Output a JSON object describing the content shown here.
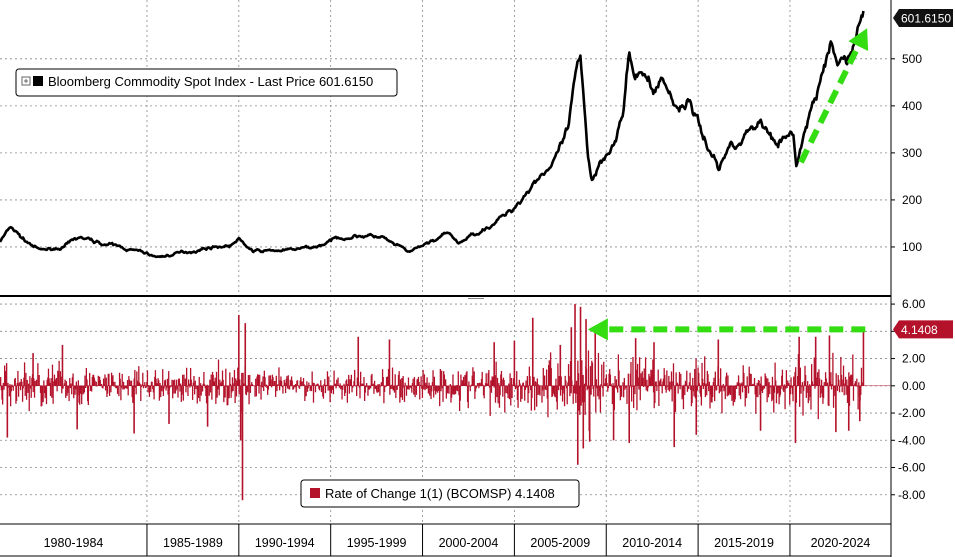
{
  "chart_data": [
    {
      "type": "line",
      "legend": {
        "label": "Bloomberg Commodity Spot Index - Last Price 601.6150",
        "placement": "top-left",
        "swatch_color": "#000000"
      },
      "series": [
        {
          "color": "#000000",
          "last_value_label": "601.6150",
          "anchors": [
            [
              1977.0,
              112
            ],
            [
              1977.6,
              142
            ],
            [
              1978.3,
              115
            ],
            [
              1979.2,
              92
            ],
            [
              1980.5,
              100
            ],
            [
              1981.3,
              120
            ],
            [
              1982.3,
              110
            ],
            [
              1983.5,
              100
            ],
            [
              1984.8,
              88
            ],
            [
              1985.6,
              78
            ],
            [
              1986.5,
              85
            ],
            [
              1987.5,
              92
            ],
            [
              1988.5,
              100
            ],
            [
              1989.5,
              103
            ],
            [
              1990.0,
              115
            ],
            [
              1990.8,
              90
            ],
            [
              1991.8,
              92
            ],
            [
              1992.8,
              93
            ],
            [
              1994.2,
              100
            ],
            [
              1995.5,
              120
            ],
            [
              1996.8,
              125
            ],
            [
              1997.8,
              120
            ],
            [
              1998.4,
              105
            ],
            [
              1999.3,
              88
            ],
            [
              2000.3,
              108
            ],
            [
              2001.3,
              128
            ],
            [
              2002.0,
              108
            ],
            [
              2002.9,
              130
            ],
            [
              2003.8,
              150
            ],
            [
              2004.8,
              175
            ],
            [
              2005.5,
              210
            ],
            [
              2006.4,
              255
            ],
            [
              2007.2,
              280
            ],
            [
              2007.9,
              340
            ],
            [
              2008.4,
              470
            ],
            [
              2008.6,
              480
            ],
            [
              2009.0,
              300
            ],
            [
              2009.2,
              245
            ],
            [
              2009.8,
              290
            ],
            [
              2010.4,
              330
            ],
            [
              2010.9,
              380
            ],
            [
              2011.25,
              510
            ],
            [
              2011.6,
              440
            ],
            [
              2012.0,
              475
            ],
            [
              2012.5,
              430
            ],
            [
              2013.0,
              460
            ],
            [
              2013.8,
              400
            ],
            [
              2014.6,
              410
            ],
            [
              2015.3,
              330
            ],
            [
              2015.8,
              300
            ],
            [
              2016.1,
              265
            ],
            [
              2016.8,
              320
            ],
            [
              2017.6,
              340
            ],
            [
              2018.4,
              370
            ],
            [
              2018.9,
              340
            ],
            [
              2019.7,
              330
            ],
            [
              2020.2,
              330
            ],
            [
              2020.35,
              275
            ],
            [
              2020.8,
              340
            ],
            [
              2021.4,
              420
            ],
            [
              2021.8,
              460
            ],
            [
              2022.2,
              520
            ],
            [
              2022.6,
              480
            ],
            [
              2023.0,
              500
            ],
            [
              2023.4,
              520
            ],
            [
              2023.7,
              560
            ],
            [
              2024.0,
              601.615
            ]
          ]
        }
      ],
      "x_categories": [
        "1980-1984",
        "1985-1989",
        "1990-1994",
        "1995-1999",
        "2000-2004",
        "2005-2009",
        "2010-2014",
        "2015-2019",
        "2020-2024"
      ],
      "yticks": [
        100,
        200,
        300,
        400,
        500
      ],
      "ylim": [
        0,
        625
      ],
      "xlim": [
        1977.0,
        2025.5
      ],
      "grid": true,
      "annotation": {
        "type": "arrow",
        "color": "#33dd11",
        "from": [
          2020.6,
          280
        ],
        "to": [
          2024.2,
          565
        ],
        "style": "dashed"
      }
    },
    {
      "type": "bar",
      "legend": {
        "label": "Rate of Change 1(1) (BCOMSP) 4.1408",
        "placement": "bottom-center",
        "swatch_color": "#b3122a"
      },
      "series": [
        {
          "color": "#b3122a",
          "last_value_label": "4.1408",
          "volatility_regimes": [
            [
              1977.0,
              1.5
            ],
            [
              1979.8,
              1.6
            ],
            [
              1982.5,
              1.25
            ],
            [
              1986.0,
              1.1
            ],
            [
              1990.5,
              1.5
            ],
            [
              1991.5,
              0.95
            ],
            [
              1995.0,
              1.0
            ],
            [
              1997.5,
              1.2
            ],
            [
              2000.0,
              1.3
            ],
            [
              2004.0,
              1.5
            ],
            [
              2007.0,
              2.0
            ],
            [
              2008.8,
              2.9
            ],
            [
              2009.8,
              2.1
            ],
            [
              2011.0,
              1.9
            ],
            [
              2014.0,
              1.5
            ],
            [
              2015.5,
              1.7
            ],
            [
              2018.5,
              1.5
            ],
            [
              2020.2,
              2.1
            ],
            [
              2022.2,
              1.9
            ],
            [
              2024.0,
              1.6
            ]
          ],
          "spikes": [
            [
              1977.4,
              -3.8
            ],
            [
              1978.8,
              2.4
            ],
            [
              1980.4,
              3.0
            ],
            [
              1981.2,
              -3.2
            ],
            [
              1984.3,
              -3.5
            ],
            [
              1986.2,
              -2.8
            ],
            [
              1988.3,
              -3.0
            ],
            [
              1990.0,
              5.2
            ],
            [
              1990.1,
              -4.0
            ],
            [
              1990.2,
              -8.4
            ],
            [
              1990.35,
              4.6
            ],
            [
              1996.5,
              3.6
            ],
            [
              1998.2,
              3.4
            ],
            [
              2003.9,
              3.2
            ],
            [
              2005.0,
              3.3
            ],
            [
              2006.0,
              5.0
            ],
            [
              2007.5,
              3.0
            ],
            [
              2008.1,
              4.3
            ],
            [
              2008.3,
              6.0
            ],
            [
              2008.45,
              -5.8
            ],
            [
              2008.6,
              5.8
            ],
            [
              2008.75,
              -4.6
            ],
            [
              2008.9,
              4.9
            ],
            [
              2009.1,
              -4.1
            ],
            [
              2009.4,
              3.9
            ],
            [
              2010.4,
              -4.0
            ],
            [
              2011.25,
              -4.2
            ],
            [
              2011.6,
              3.5
            ],
            [
              2012.6,
              3.2
            ],
            [
              2013.7,
              -4.5
            ],
            [
              2014.9,
              -3.6
            ],
            [
              2016.1,
              3.4
            ],
            [
              2018.4,
              -3.3
            ],
            [
              2020.3,
              -4.2
            ],
            [
              2020.5,
              3.6
            ],
            [
              2021.4,
              3.6
            ],
            [
              2022.15,
              3.7
            ],
            [
              2022.5,
              -3.4
            ],
            [
              2023.2,
              -3.3
            ],
            [
              2023.8,
              -2.6
            ],
            [
              2024.0,
              4.1408
            ]
          ]
        }
      ],
      "yticks": [
        "6.00",
        "4.00",
        "2.00",
        "0.00",
        "-2.00",
        "-4.00",
        "-6.00",
        "-8.00"
      ],
      "ylim": [
        -10.0,
        6.3
      ],
      "xlim": [
        1977.0,
        2025.5
      ],
      "grid": true,
      "annotation": {
        "type": "arrow",
        "color": "#33dd11",
        "from": [
          2024.1,
          4.1408
        ],
        "to": [
          2009.0,
          4.1408
        ],
        "style": "dashed"
      }
    }
  ]
}
